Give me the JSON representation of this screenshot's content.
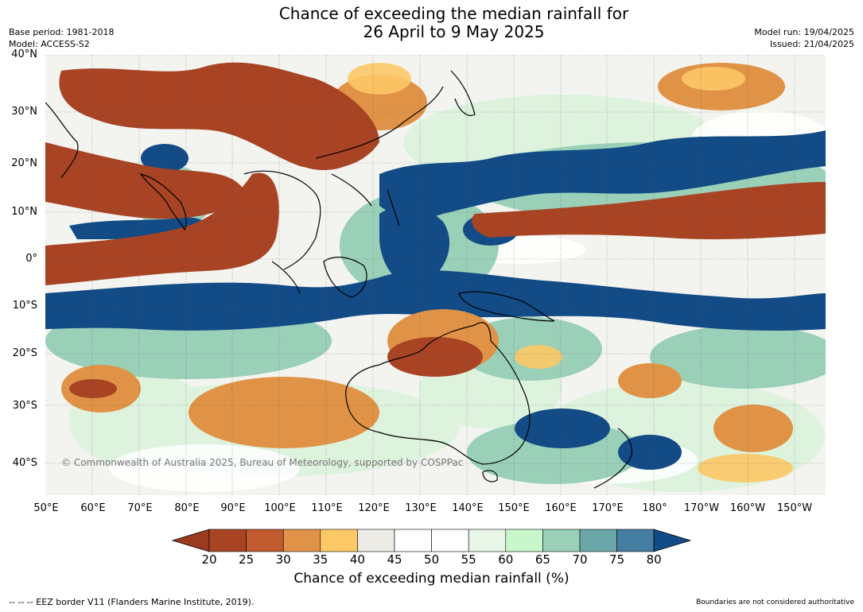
{
  "title": {
    "line1": "Chance of exceeding the median rainfall for",
    "line2": "26 April to 9 May 2025"
  },
  "meta_left": {
    "base_period": "Base period: 1981-2018",
    "model": "Model: ACCESS-S2"
  },
  "meta_right": {
    "model_run": "Model run: 19/04/2025",
    "issued": "Issued: 21/04/2025"
  },
  "map": {
    "region": "Indian Ocean, Maritime Continent, Australia and Western Pacific",
    "copyright": "© Commonwealth of Australia 2025, Bureau of Meteorology, supported by COSPPac",
    "lat_labels": [
      "40°N",
      "30°N",
      "20°N",
      "10°N",
      "0°",
      "10°S",
      "20°S",
      "30°S",
      "40°S"
    ],
    "lon_labels": [
      "50°E",
      "60°E",
      "70°E",
      "80°E",
      "90°E",
      "100°E",
      "110°E",
      "120°E",
      "130°E",
      "140°E",
      "150°E",
      "160°E",
      "170°E",
      "180°",
      "170°W",
      "160°W",
      "150°W"
    ],
    "features": {
      "wet_bands": [
        "equatorial Indian Ocean near 5°S-15°S",
        "Maritime Continent and Philippines",
        "northern Pacific near 15°N-25°N",
        "southeast of Australia"
      ],
      "dry_bands": [
        "Arabian Sea and India",
        "central Pacific near 5°N-12°N",
        "northern Australia",
        "southern Indian Ocean near 30°S-35°S"
      ]
    }
  },
  "colorbar": {
    "title": "Chance of exceeding median rainfall (%)",
    "ticks": [
      "20",
      "25",
      "30",
      "35",
      "40",
      "45",
      "50",
      "55",
      "60",
      "65",
      "70",
      "75",
      "80"
    ],
    "colors": {
      "under": "#9a3b1f",
      "bins": [
        "#a84424",
        "#c15b30",
        "#e09346",
        "#fdc866",
        "#ecebe5",
        "#ffffff",
        "#ffffff",
        "#e8f6e8",
        "#c9f7cc",
        "#9acfb8",
        "#6ba7a9",
        "#467ea2"
      ],
      "over": "#124b85"
    }
  },
  "footer": {
    "eez": "--  --  -- EEZ border V11 (Flanders Marine Institute, 2019).",
    "boundaries": "Boundaries are not considered authoritative"
  }
}
